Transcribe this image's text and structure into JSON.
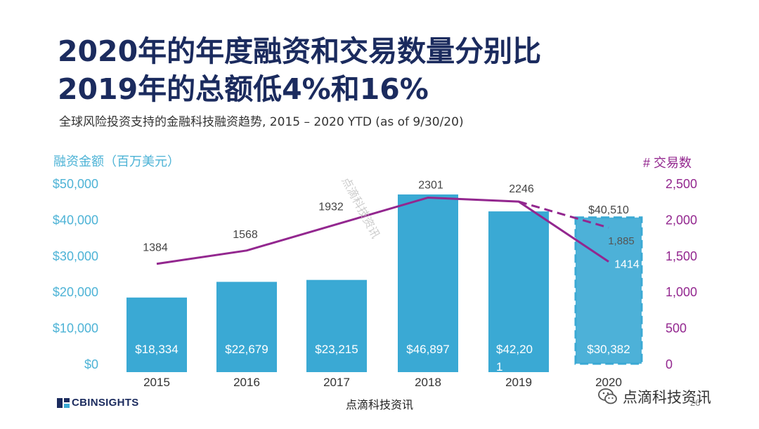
{
  "slide": {
    "title_line1": "2020年的年度融资和交易数量分别比",
    "title_line2": "2019年的总额低4%和16%",
    "subtitle": "全球风险投资支持的金融科技融资趋势, 2015 –  2020 YTD (as of 9/30/20)",
    "page_number": "26",
    "watermark_diagonal": "点滴科技资讯",
    "footer_center": "点滴科技资讯",
    "brand": "CBINSIGHTS",
    "wechat_text": "点滴科技资讯"
  },
  "colors": {
    "title": "#1b2b5e",
    "bar": "#3aa9d4",
    "line": "#93278f",
    "left_axis": "#4db3d6",
    "right_axis": "#93278f"
  },
  "chart_data": {
    "type": "bar",
    "left_axis_label": "融资金额（百万美元）",
    "right_axis_label": "# 交易数",
    "left_ticks": [
      "$0",
      "$10,000",
      "$20,000",
      "$30,000",
      "$40,000",
      "$50,000"
    ],
    "right_ticks": [
      "0",
      "500",
      "1,000",
      "1,500",
      "2,000",
      "2,500"
    ],
    "ylim_left": [
      0,
      50000
    ],
    "ylim_right": [
      0,
      2500
    ],
    "categories": [
      "2015",
      "2016",
      "2017",
      "2018",
      "2019",
      "2020"
    ],
    "funding": {
      "values": [
        18334,
        22679,
        23215,
        46897,
        42201,
        30382
      ],
      "labels": [
        "$18,334",
        "$22,679",
        "$23,215",
        "$46,897",
        "$42,201",
        "$30,382"
      ],
      "projected_2020": 40510,
      "projected_label": "$40,510"
    },
    "deals": {
      "values": [
        1384,
        1568,
        1932,
        2301,
        2246,
        1414
      ],
      "labels": [
        "1384",
        "1568",
        "1932",
        "2301",
        "2246",
        "1414"
      ],
      "projected_2020": 1885,
      "projected_label": "1,885"
    }
  }
}
